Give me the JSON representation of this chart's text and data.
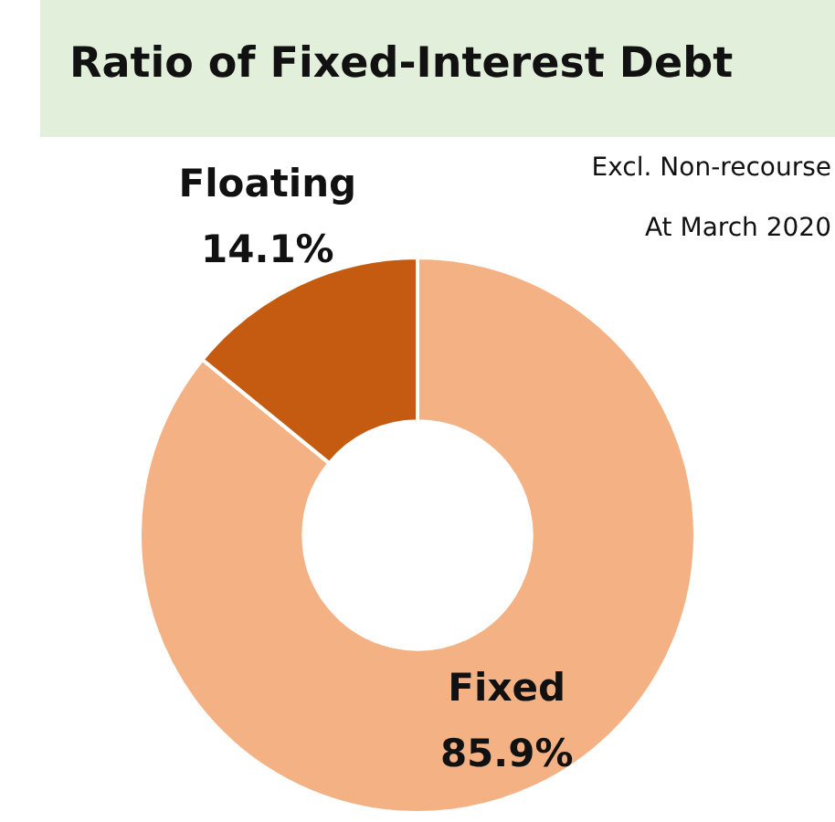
{
  "chart_data": {
    "type": "donut",
    "title": "Ratio of Fixed-Interest Debt",
    "annotations": [
      "Excl. Non-recourse",
      "At March 2020"
    ],
    "categories": [
      "Fixed",
      "Floating"
    ],
    "values": [
      85.9,
      14.1
    ],
    "colors": [
      "#f4b183",
      "#c55a11"
    ],
    "value_labels": [
      "85.9%",
      "14.1%"
    ],
    "legend": false
  }
}
